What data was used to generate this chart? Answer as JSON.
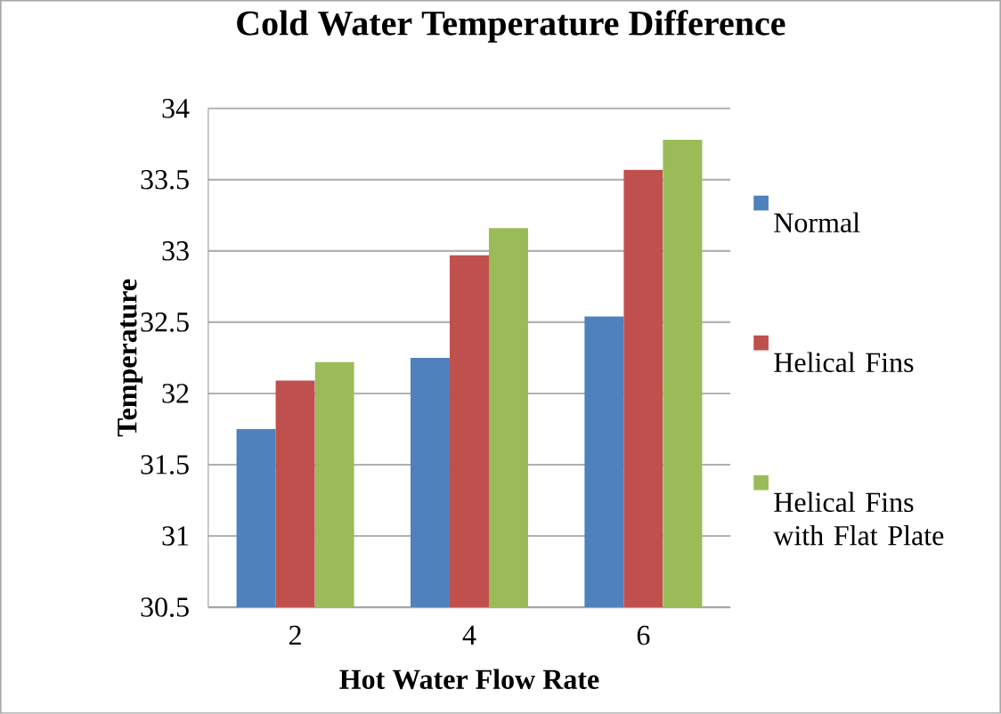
{
  "chart_data": {
    "type": "bar",
    "title": "Cold Water Temperature Difference",
    "xlabel": "Hot Water Flow Rate",
    "ylabel": "Temperature",
    "categories": [
      "2",
      "4",
      "6"
    ],
    "series": [
      {
        "name": "Normal",
        "color": "#4f81bd",
        "values": [
          31.75,
          32.25,
          32.54
        ]
      },
      {
        "name": "Helical Fins",
        "color": "#c0504d",
        "values": [
          32.09,
          32.97,
          33.57
        ]
      },
      {
        "name": "Helical Fins with Flat Plate",
        "color": "#9bbb59",
        "values": [
          32.22,
          33.16,
          33.78
        ]
      }
    ],
    "ylim": [
      30.5,
      34
    ],
    "yticks": [
      30.5,
      31,
      31.5,
      32,
      32.5,
      33,
      33.5,
      34
    ],
    "grid": "y",
    "legend": "right"
  }
}
